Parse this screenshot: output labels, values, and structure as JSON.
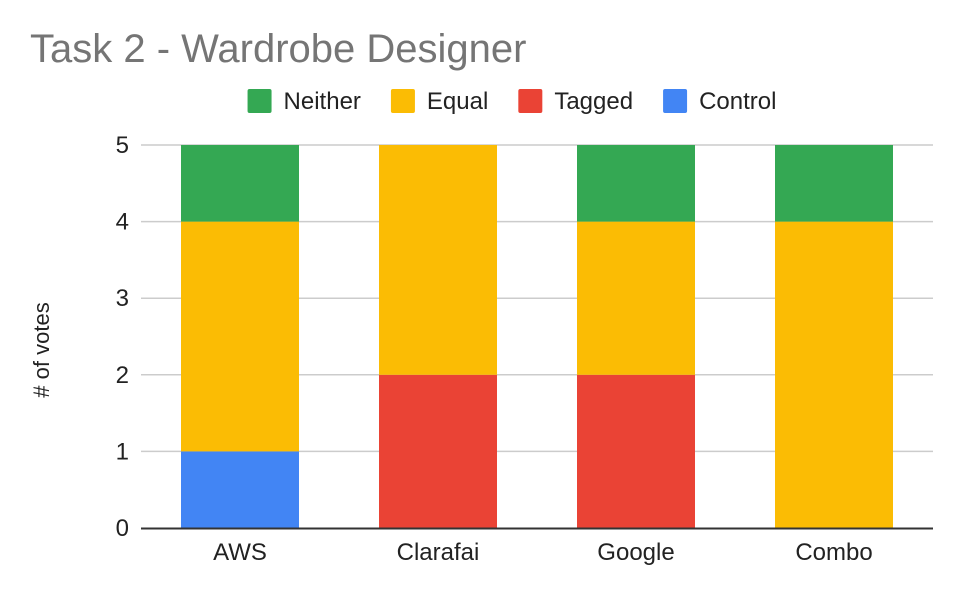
{
  "chart_data": {
    "type": "bar",
    "stacked": true,
    "title": "Task 2 - Wardrobe Designer",
    "xlabel": "",
    "ylabel": "# of votes",
    "categories": [
      "AWS",
      "Clarafai",
      "Google",
      "Combo"
    ],
    "ylim": [
      0,
      5
    ],
    "yticks": [
      0,
      1,
      2,
      3,
      4,
      5
    ],
    "grid": true,
    "legend_position": "top",
    "series": [
      {
        "name": "Control",
        "color": "#4285f4",
        "values": [
          1,
          0,
          0,
          0
        ]
      },
      {
        "name": "Tagged",
        "color": "#ea4335",
        "values": [
          0,
          2,
          2,
          0
        ]
      },
      {
        "name": "Equal",
        "color": "#fbbc04",
        "values": [
          3,
          3,
          2,
          4
        ]
      },
      {
        "name": "Neither",
        "color": "#34a853",
        "values": [
          1,
          0,
          1,
          1
        ]
      }
    ],
    "legend_order": [
      "Neither",
      "Equal",
      "Tagged",
      "Control"
    ]
  }
}
